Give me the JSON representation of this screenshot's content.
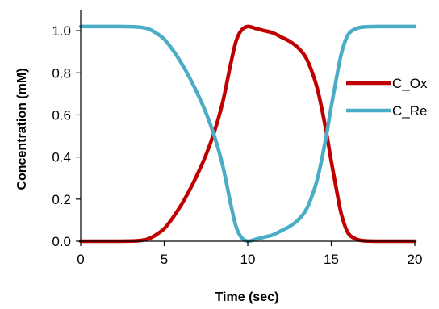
{
  "chart_data": {
    "type": "line",
    "xlabel": "Time (sec)",
    "ylabel": "Concentration (mM)",
    "xlim": [
      0,
      20
    ],
    "ylim": [
      0,
      1.1
    ],
    "x_ticks": [
      "0",
      "5",
      "10",
      "15",
      "20"
    ],
    "y_ticks": [
      "0.0",
      "0.2",
      "0.4",
      "0.6",
      "0.8",
      "1.0"
    ],
    "grid": false,
    "legend_position": "right",
    "series": [
      {
        "name": "C_Ox",
        "color": "#c00000",
        "x": [
          0,
          1,
          2,
          3,
          3.5,
          4,
          4.5,
          5,
          5.5,
          6,
          6.5,
          7,
          7.5,
          8,
          8.5,
          9,
          9.3,
          9.6,
          10,
          10.5,
          11,
          11.5,
          12,
          12.5,
          13,
          13.5,
          14,
          14.3,
          14.7,
          15,
          15.3,
          15.6,
          16,
          16.5,
          17,
          18,
          19,
          20
        ],
        "y": [
          0,
          0,
          0,
          0.001,
          0.003,
          0.01,
          0.03,
          0.06,
          0.11,
          0.17,
          0.24,
          0.32,
          0.41,
          0.52,
          0.66,
          0.85,
          0.95,
          1.0,
          1.02,
          1.01,
          1.0,
          0.99,
          0.97,
          0.95,
          0.92,
          0.87,
          0.77,
          0.68,
          0.52,
          0.38,
          0.25,
          0.13,
          0.04,
          0.01,
          0.002,
          0,
          0,
          0
        ]
      },
      {
        "name": "C_Re",
        "color": "#4bacc6",
        "x": [
          0,
          1,
          2,
          3,
          3.5,
          4,
          4.5,
          5,
          5.5,
          6,
          6.5,
          7,
          7.5,
          8,
          8.5,
          9,
          9.3,
          9.6,
          10,
          10.5,
          11,
          11.5,
          12,
          12.5,
          13,
          13.5,
          14,
          14.3,
          14.7,
          15,
          15.3,
          15.6,
          16,
          16.5,
          17,
          18,
          19,
          20
        ],
        "y": [
          1.02,
          1.02,
          1.02,
          1.019,
          1.017,
          1.01,
          0.99,
          0.96,
          0.91,
          0.85,
          0.78,
          0.7,
          0.61,
          0.5,
          0.36,
          0.17,
          0.07,
          0.02,
          0.0,
          0.01,
          0.02,
          0.03,
          0.05,
          0.07,
          0.1,
          0.15,
          0.25,
          0.34,
          0.5,
          0.64,
          0.77,
          0.89,
          0.98,
          1.01,
          1.018,
          1.02,
          1.02,
          1.02
        ]
      }
    ]
  }
}
